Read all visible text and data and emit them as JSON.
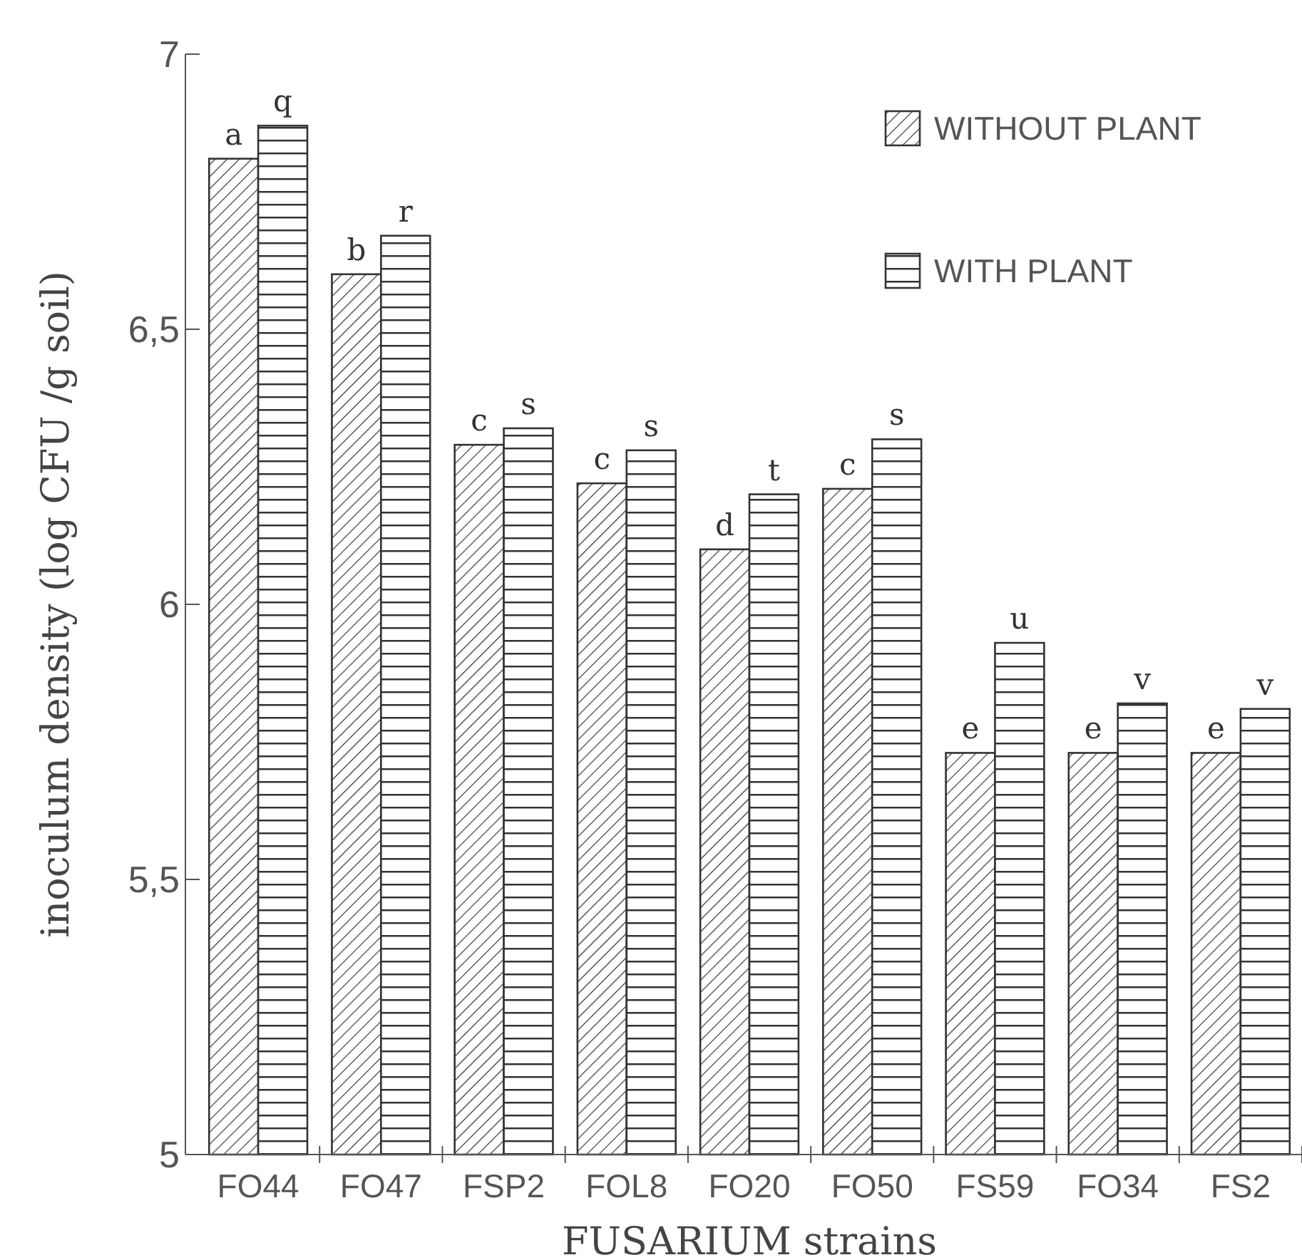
{
  "chart_data": {
    "type": "bar",
    "xlabel": "FUSARIUM strains",
    "ylabel": "inoculum density (log CFU /g soil)",
    "categories": [
      "FO44",
      "FO47",
      "FSP2",
      "FOL8",
      "FO20",
      "FO50",
      "FS59",
      "FO34",
      "FS2"
    ],
    "series": [
      {
        "name": "WITHOUT PLANT",
        "color": "#333333",
        "values": [
          6.81,
          6.6,
          6.29,
          6.22,
          6.1,
          6.21,
          5.73,
          5.73,
          5.73
        ],
        "value_labels": [
          "a",
          "b",
          "c",
          "c",
          "d",
          "c",
          "e",
          "e",
          "e"
        ]
      },
      {
        "name": "WITH PLANT",
        "color": "#333333",
        "values": [
          6.87,
          6.67,
          6.32,
          6.28,
          6.2,
          6.3,
          5.93,
          5.82,
          5.81
        ],
        "value_labels": [
          "q",
          "r",
          "s",
          "s",
          "t",
          "s",
          "u",
          "v",
          "v"
        ]
      }
    ],
    "ylim": [
      5,
      7
    ],
    "yticks": [
      5,
      {
        "value": 5.5,
        "label": "5,5"
      },
      6,
      {
        "value": 6.5,
        "label": "6,5"
      },
      7
    ],
    "legend": "top right",
    "grid": false
  }
}
